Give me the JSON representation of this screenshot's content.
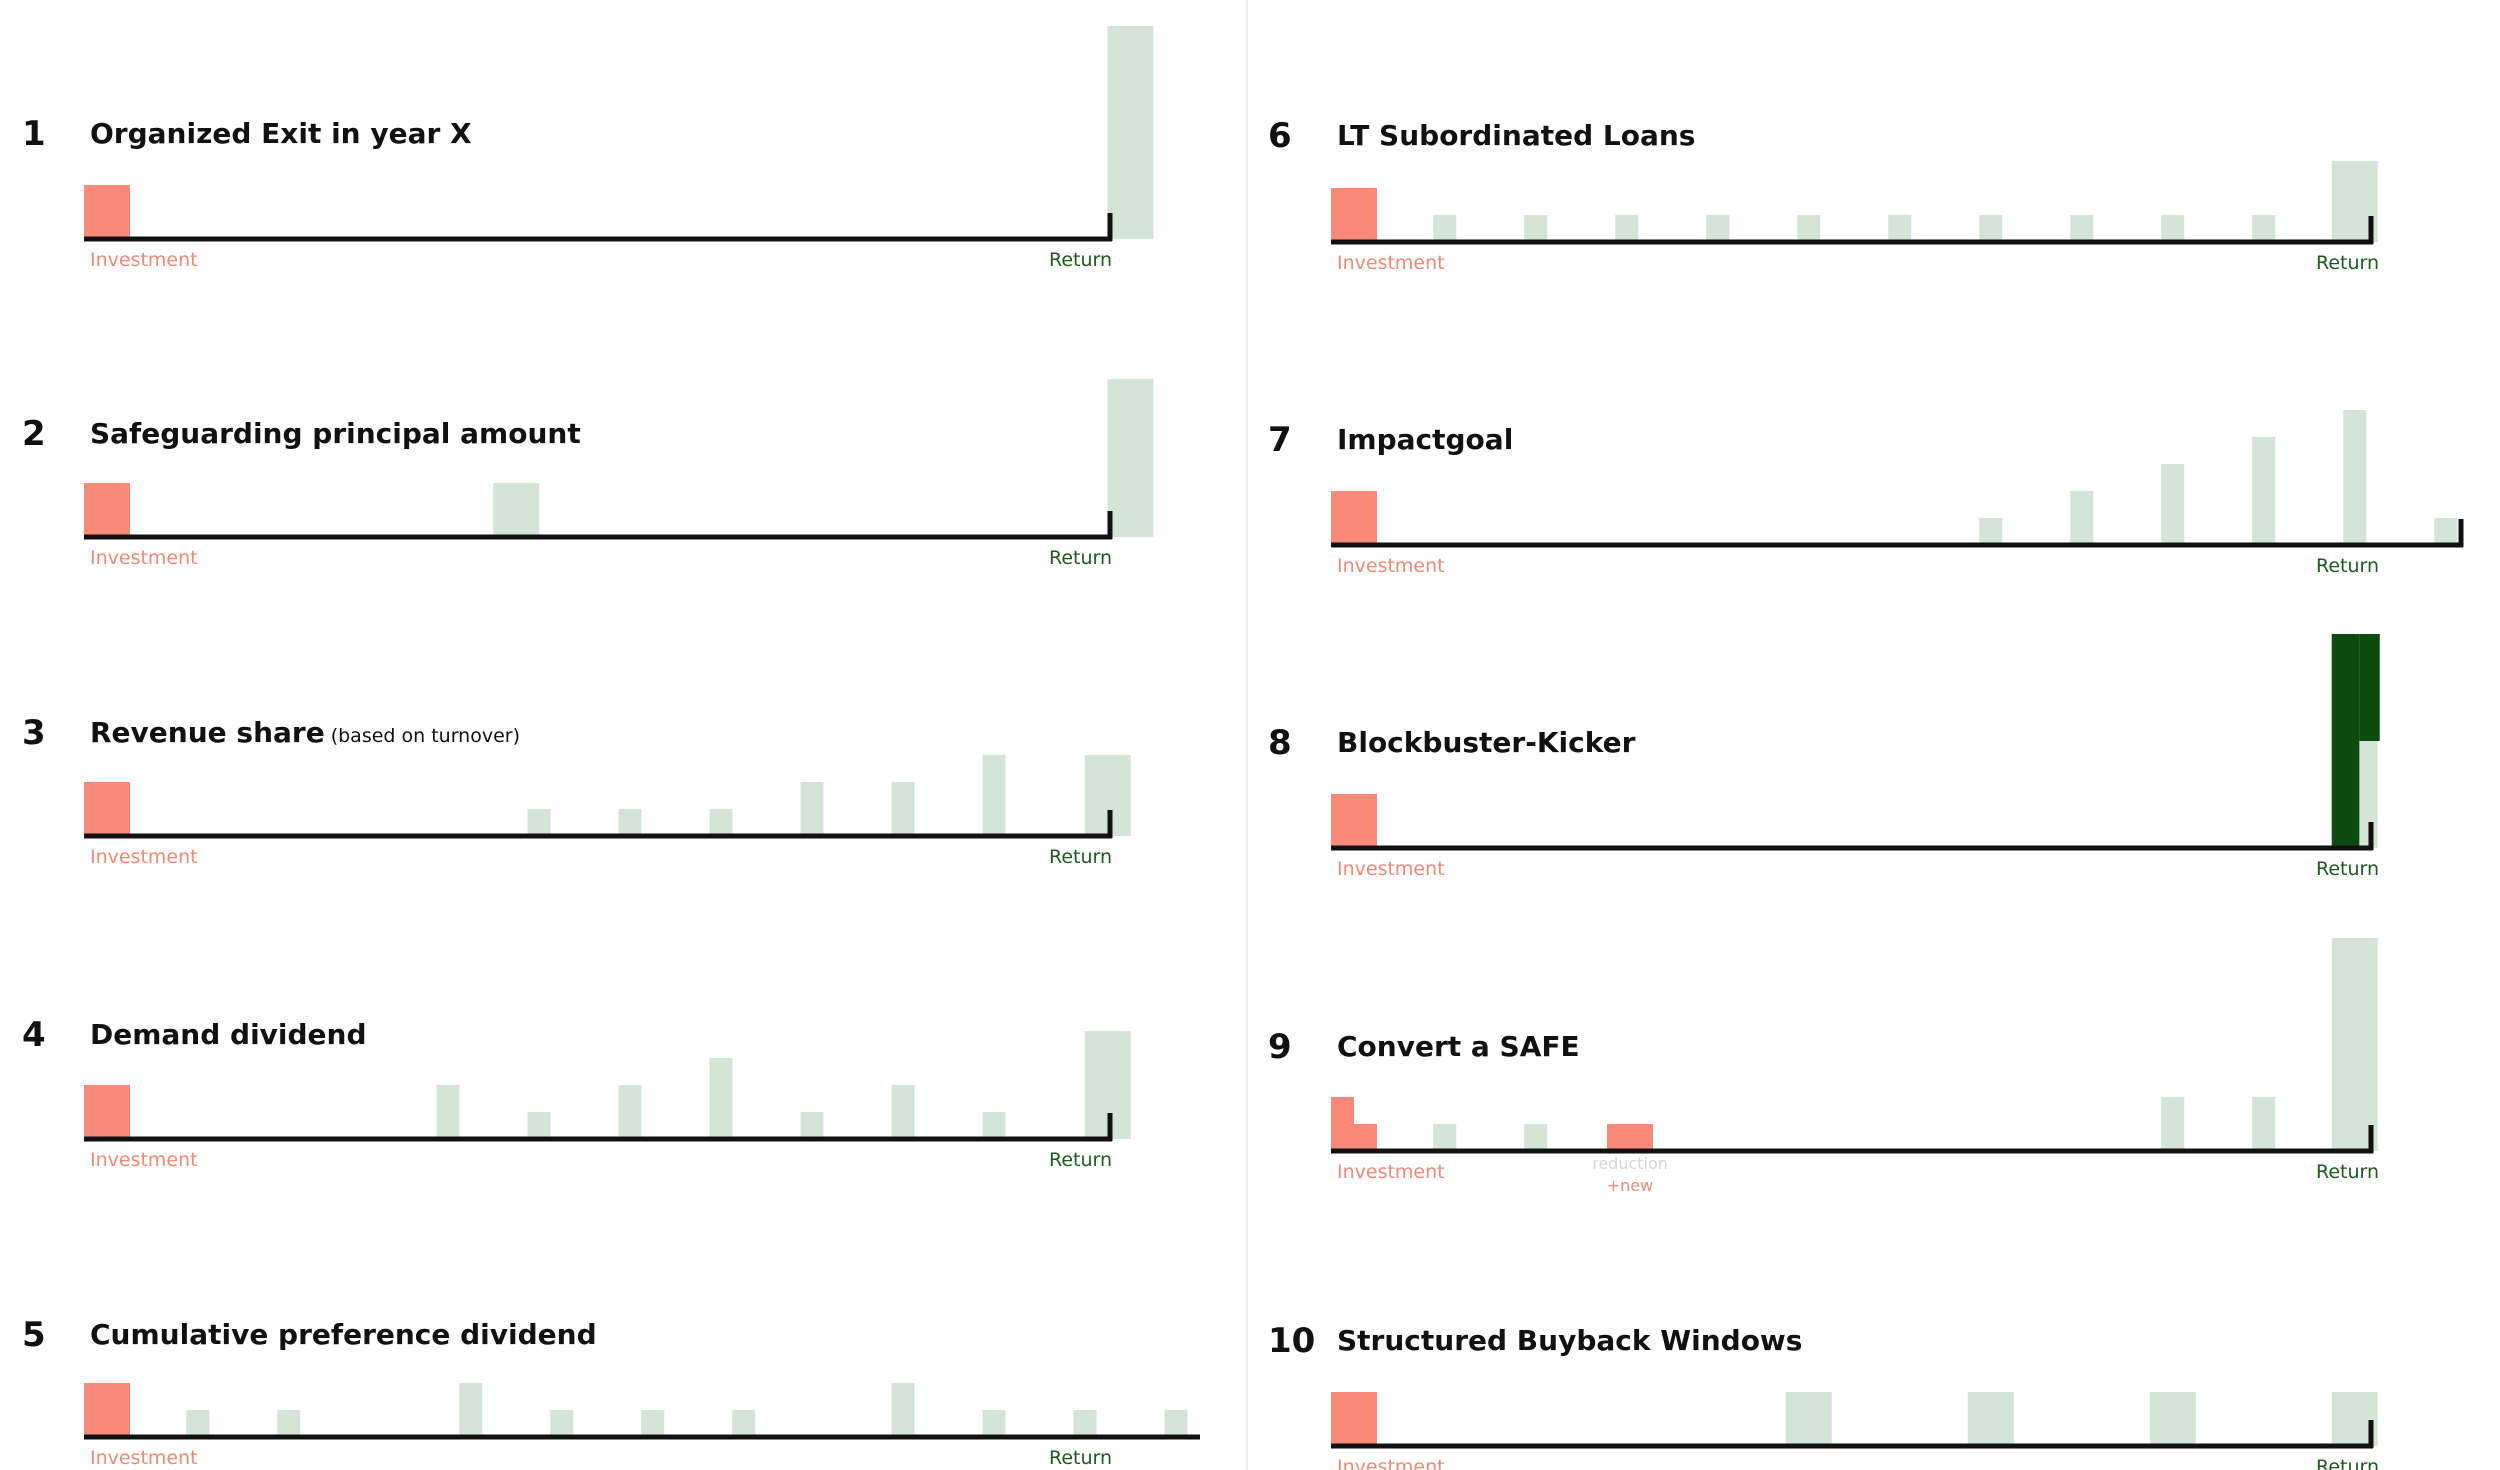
{
  "colors": {
    "investment": "#f98a79",
    "return_bar": "#d4e4d6",
    "kicker": "#0d4a10",
    "investment_label": "#f08a76",
    "return_label": "#1e5a1e",
    "axis": "#111111",
    "divider": "#eeeeee"
  },
  "labels": {
    "investment": "Investment",
    "return": "Return",
    "reduction": "reduction",
    "new": "+new"
  },
  "chart_data": [
    {
      "type": "bar",
      "number": "1",
      "title": "Organized Exit in year X",
      "subtitle": "",
      "investment": 2,
      "returns": [
        {
          "slot": 23,
          "value": 8
        }
      ]
    },
    {
      "type": "bar",
      "number": "2",
      "title": "Safeguarding principal amount",
      "subtitle": "",
      "investment": 2,
      "returns": [
        {
          "slot": 9.5,
          "value": 2
        },
        {
          "slot": 23,
          "value": 6
        }
      ]
    },
    {
      "type": "bar",
      "number": "3",
      "title": "Revenue share",
      "subtitle": "(based on turnover)",
      "investment": 2,
      "returns": [
        {
          "slot": 10,
          "value": 1
        },
        {
          "slot": 12,
          "value": 1
        },
        {
          "slot": 14,
          "value": 1
        },
        {
          "slot": 16,
          "value": 2
        },
        {
          "slot": 18,
          "value": 2
        },
        {
          "slot": 20,
          "value": 3
        },
        {
          "slot": 22.5,
          "value": 3
        }
      ]
    },
    {
      "type": "bar",
      "number": "4",
      "title": "Demand dividend",
      "subtitle": "",
      "investment": 2,
      "returns": [
        {
          "slot": 8,
          "value": 2
        },
        {
          "slot": 10,
          "value": 1
        },
        {
          "slot": 12,
          "value": 2
        },
        {
          "slot": 14,
          "value": 3
        },
        {
          "slot": 16,
          "value": 1
        },
        {
          "slot": 18,
          "value": 2
        },
        {
          "slot": 20,
          "value": 1
        },
        {
          "slot": 22.5,
          "value": 4
        }
      ]
    },
    {
      "type": "bar",
      "number": "5",
      "title": "Cumulative preference dividend",
      "subtitle": "",
      "investment": 2,
      "returns": [
        {
          "slot": 2.5,
          "value": 1
        },
        {
          "slot": 4.5,
          "value": 1
        },
        {
          "slot": 8.5,
          "value": 2
        },
        {
          "slot": 10.5,
          "value": 1
        },
        {
          "slot": 12.5,
          "value": 1
        },
        {
          "slot": 14.5,
          "value": 1
        },
        {
          "slot": 18,
          "value": 2
        },
        {
          "slot": 20,
          "value": 1
        },
        {
          "slot": 22,
          "value": 1
        },
        {
          "slot": 24,
          "value": 1
        }
      ]
    },
    {
      "type": "bar",
      "number": "6",
      "title": "LT Subordinated Loans",
      "subtitle": "",
      "investment": 2,
      "returns": [
        {
          "slot": 2.5,
          "value": 1
        },
        {
          "slot": 4.5,
          "value": 1
        },
        {
          "slot": 6.5,
          "value": 1
        },
        {
          "slot": 8.5,
          "value": 1
        },
        {
          "slot": 10.5,
          "value": 1
        },
        {
          "slot": 12.5,
          "value": 1
        },
        {
          "slot": 14.5,
          "value": 1
        },
        {
          "slot": 16.5,
          "value": 1
        },
        {
          "slot": 18.5,
          "value": 1
        },
        {
          "slot": 20.5,
          "value": 1
        },
        {
          "slot": 22.5,
          "value": 3
        }
      ]
    },
    {
      "type": "bar",
      "number": "7",
      "title": "Impactgoal",
      "subtitle": "",
      "investment": 2,
      "returns": [
        {
          "slot": 14.5,
          "value": 1
        },
        {
          "slot": 16.5,
          "value": 2
        },
        {
          "slot": 18.5,
          "value": 3
        },
        {
          "slot": 20.5,
          "value": 4
        },
        {
          "slot": 22.5,
          "value": 5
        },
        {
          "slot": 24.5,
          "value": 1
        }
      ]
    },
    {
      "type": "bar",
      "number": "8",
      "title": "Blockbuster-Kicker",
      "subtitle": "",
      "investment": 2,
      "returns": [
        {
          "slot": 22.5,
          "value": 8,
          "kicker": true
        }
      ]
    },
    {
      "type": "bar",
      "number": "9",
      "title": "Convert a SAFE",
      "subtitle": "",
      "investment": 2,
      "returns": [
        {
          "slot": 2.5,
          "value": 1
        },
        {
          "slot": 4.5,
          "value": 1
        },
        {
          "slot": 18.5,
          "value": 2
        },
        {
          "slot": 20.5,
          "value": 2
        },
        {
          "slot": 22.5,
          "value": 8
        }
      ]
    },
    {
      "type": "bar",
      "number": "10",
      "title": "Structured Buyback Windows",
      "subtitle": "",
      "investment": 2,
      "returns": [
        {
          "slot": 10.5,
          "value": 2
        },
        {
          "slot": 14.5,
          "value": 2
        },
        {
          "slot": 18.5,
          "value": 2
        },
        {
          "slot": 22.5,
          "value": 2
        }
      ]
    }
  ]
}
